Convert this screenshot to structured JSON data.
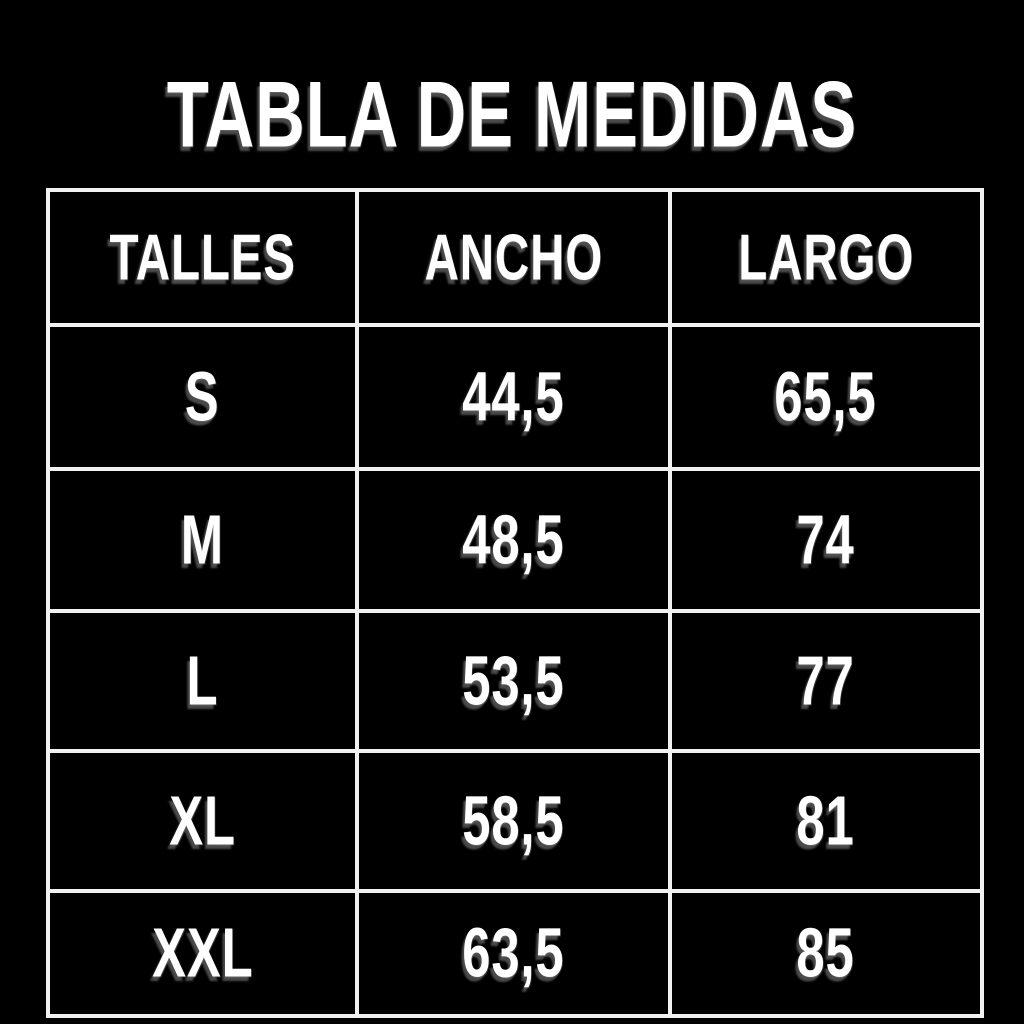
{
  "page": {
    "background_color": "#000000",
    "grid_line_color": "#f2f2f2",
    "text_color": "#ffffff"
  },
  "title": "TABLA DE MEDIDAS",
  "chart_data": {
    "type": "table",
    "title": "TABLA DE MEDIDAS",
    "columns": [
      "TALLES",
      "ANCHO",
      "LARGO"
    ],
    "rows": [
      [
        "S",
        "44,5",
        "65,5"
      ],
      [
        "M",
        "48,5",
        "74"
      ],
      [
        "L",
        "53,5",
        "77"
      ],
      [
        "XL",
        "58,5",
        "81"
      ],
      [
        "XXL",
        "63,5",
        "85"
      ]
    ]
  }
}
